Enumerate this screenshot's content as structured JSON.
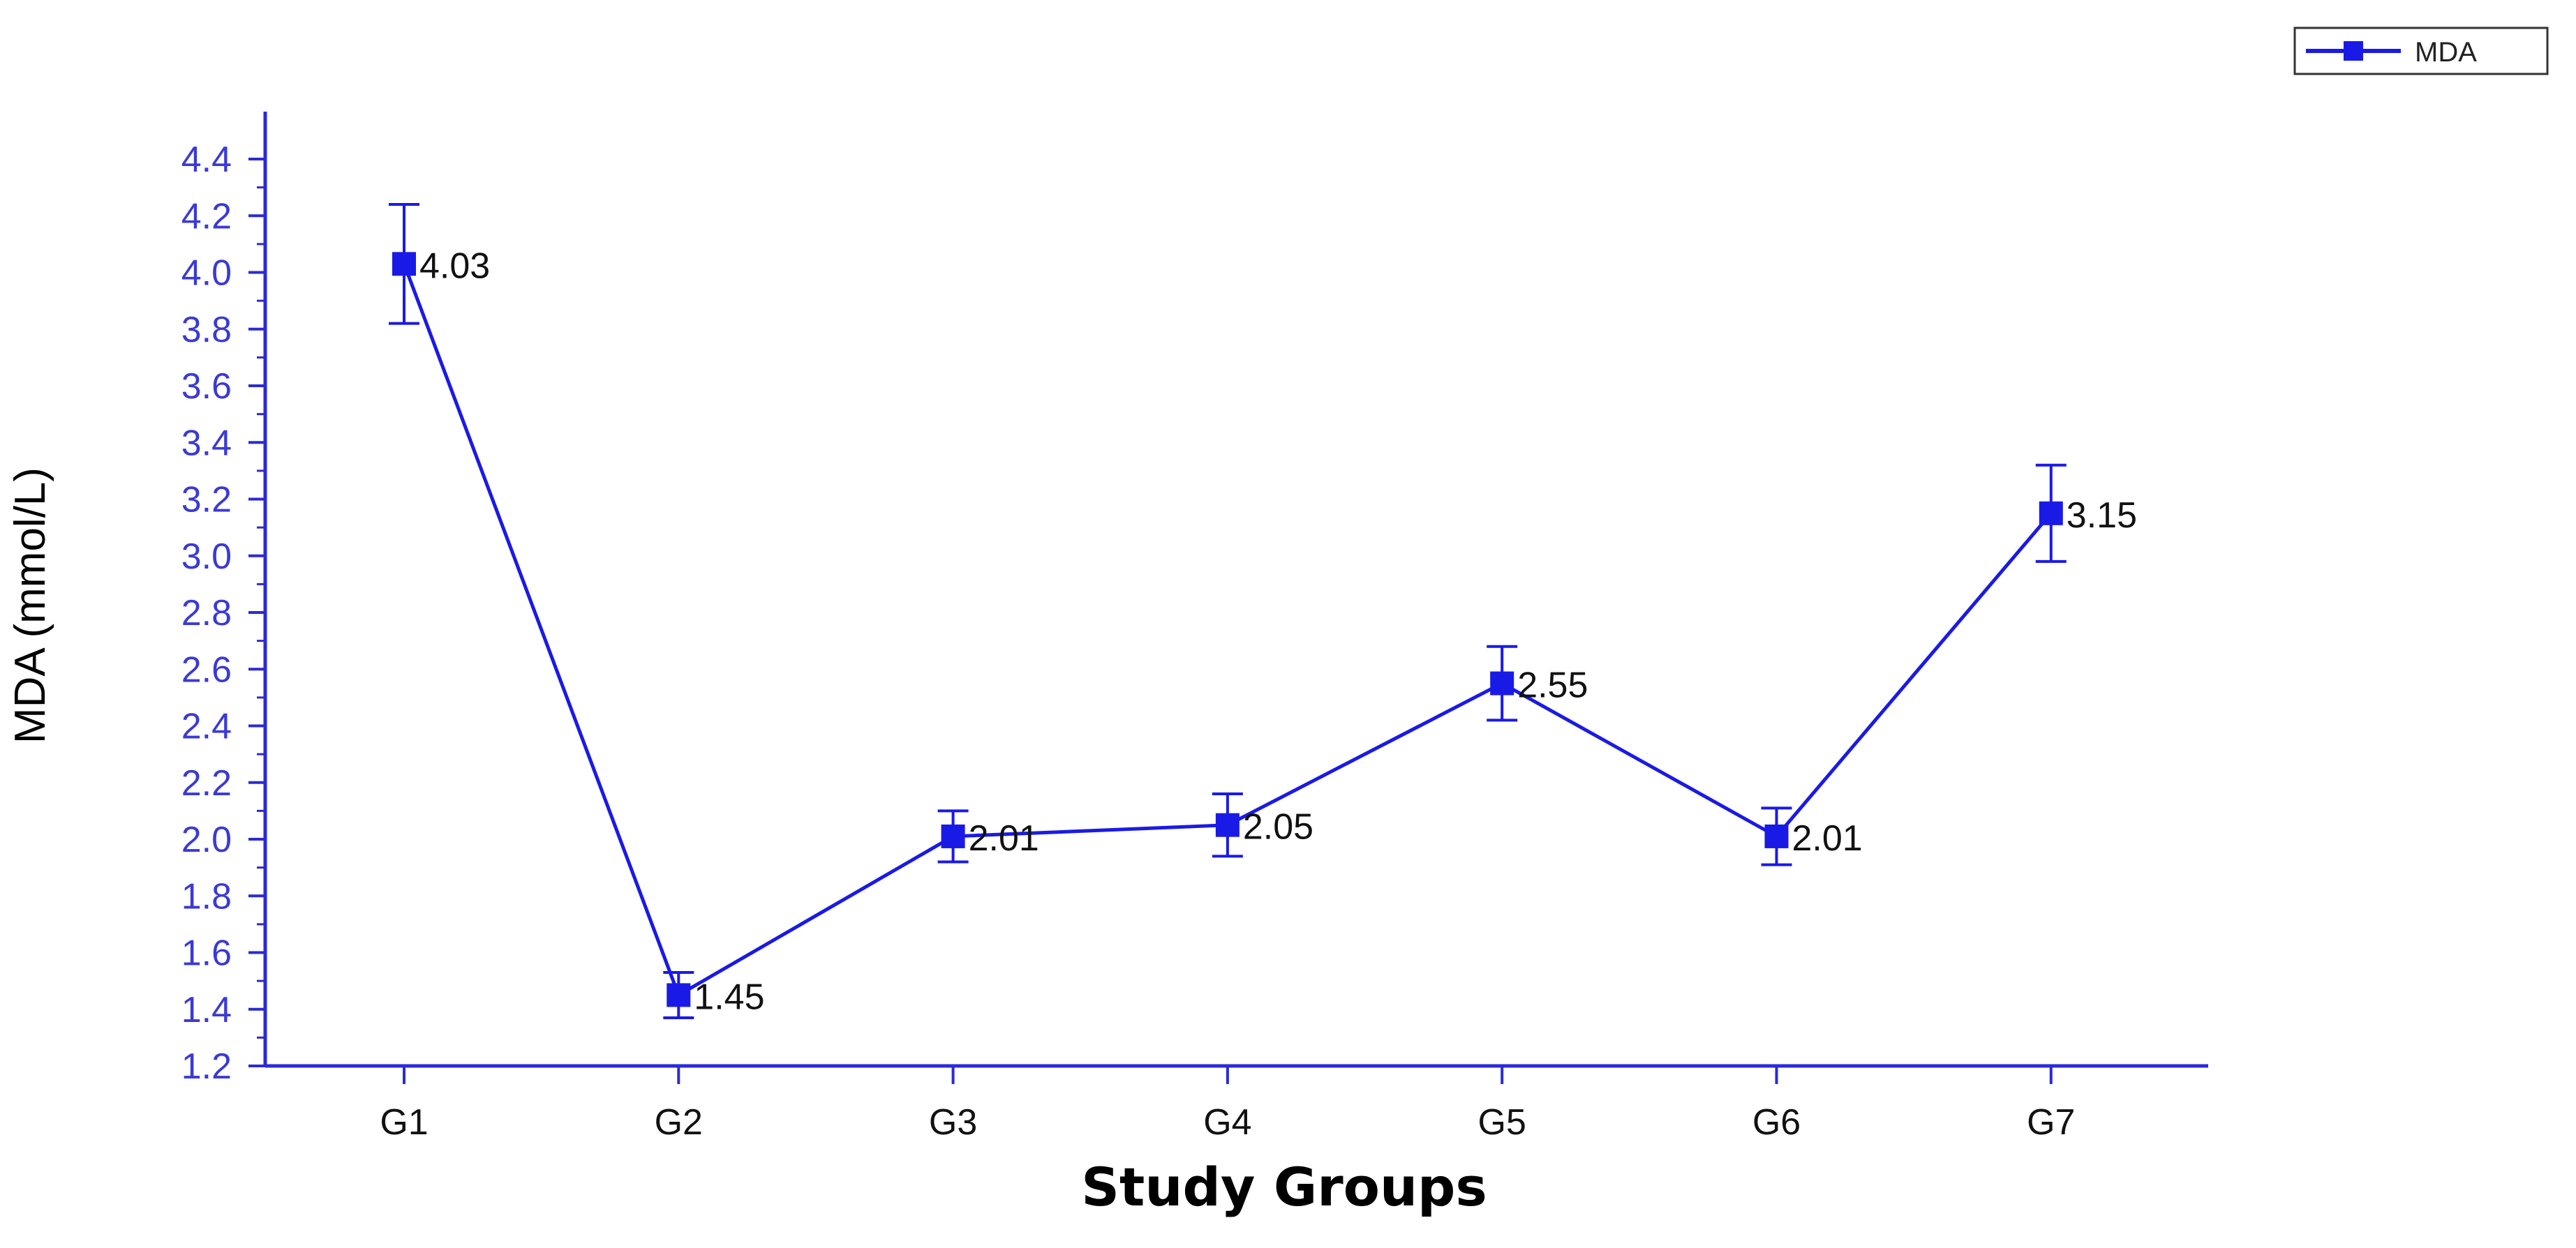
{
  "chart_data": {
    "type": "line",
    "categories": [
      "G1",
      "G2",
      "G3",
      "G4",
      "G5",
      "G6",
      "G7"
    ],
    "series": [
      {
        "name": "MDA",
        "values": [
          4.03,
          1.45,
          2.01,
          2.05,
          2.55,
          2.01,
          3.15
        ],
        "error": [
          0.21,
          0.08,
          0.09,
          0.11,
          0.13,
          0.1,
          0.17
        ],
        "labels": [
          "4.03",
          "1.45",
          "2.01",
          "2.05",
          "2.55",
          "2.01",
          "3.15"
        ],
        "color": "#1a1ae6"
      }
    ],
    "xlabel": "Study Groups",
    "ylabel": "MDA (mmol/L)",
    "ylim": [
      1.2,
      4.4
    ],
    "yticks": [
      "1.2",
      "1.4",
      "1.6",
      "1.8",
      "2.0",
      "2.2",
      "2.4",
      "2.6",
      "2.8",
      "3.0",
      "3.2",
      "3.4",
      "3.6",
      "3.8",
      "4.0",
      "4.2",
      "4.4"
    ],
    "grid": false,
    "legend": {
      "position": "top-right",
      "entries": [
        "MDA"
      ]
    },
    "axis_color": "#2a2ad8",
    "ytick_label_color": "#3a3ad6"
  }
}
